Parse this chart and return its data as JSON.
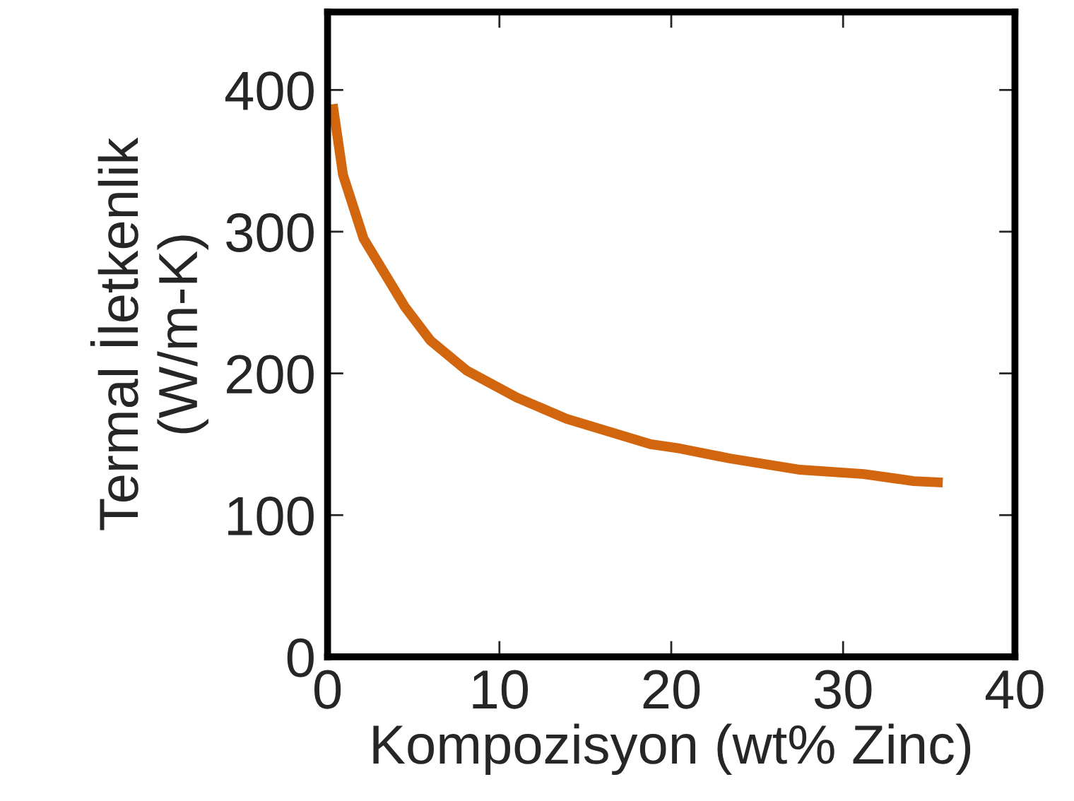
{
  "chart_data": {
    "type": "line",
    "xlabel": "Kompozisyon (wt% Zinc)",
    "ylabel": "Termal İletkenlik\n(W/m-K)",
    "x": [
      0.3,
      0.9,
      2.1,
      4.5,
      6.0,
      8.1,
      11,
      13.9,
      18.8,
      20.5,
      23.4,
      27.5,
      31.2,
      34.1,
      35.8
    ],
    "series": [
      {
        "color": "#d2660f",
        "values": [
          390,
          340,
          295,
          247,
          223,
          202,
          183,
          168,
          150,
          147,
          140,
          132,
          129,
          124,
          123
        ]
      }
    ],
    "xlim": [
      0,
      40
    ],
    "ylim": [
      0,
      455
    ],
    "xticks": [
      0,
      10,
      20,
      30,
      40
    ],
    "yticks": [
      0,
      100,
      200,
      300,
      400
    ],
    "grid": false,
    "legend": false,
    "marker": "none",
    "line_style": "solid"
  }
}
